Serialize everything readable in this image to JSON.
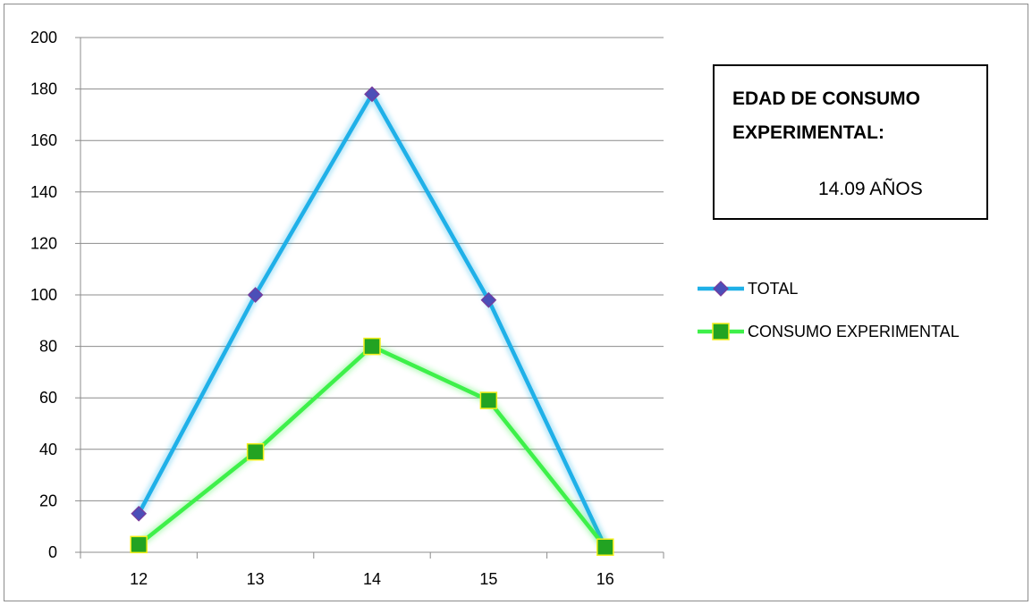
{
  "chart_data": {
    "type": "line",
    "categories": [
      "12",
      "13",
      "14",
      "15",
      "16"
    ],
    "series": [
      {
        "name": "TOTAL",
        "values": [
          15,
          100,
          178,
          98,
          2
        ],
        "color": "#1fb0e8",
        "marker": "diamond",
        "marker_color": "#4b4fb8"
      },
      {
        "name": "CONSUMO EXPERIMENTAL",
        "values": [
          3,
          39,
          80,
          59,
          2
        ],
        "color": "#3ef04a",
        "marker": "square",
        "marker_color": "#22a322"
      }
    ],
    "ylim": [
      0,
      200
    ],
    "yticks": [
      "0",
      "20",
      "40",
      "60",
      "80",
      "100",
      "120",
      "140",
      "160",
      "180",
      "200"
    ],
    "grid": true,
    "legend": "right",
    "title": "",
    "xlabel": "",
    "ylabel": ""
  },
  "info_box": {
    "title": "EDAD DE CONSUMO EXPERIMENTAL:",
    "value": "14.09 AÑOS"
  }
}
